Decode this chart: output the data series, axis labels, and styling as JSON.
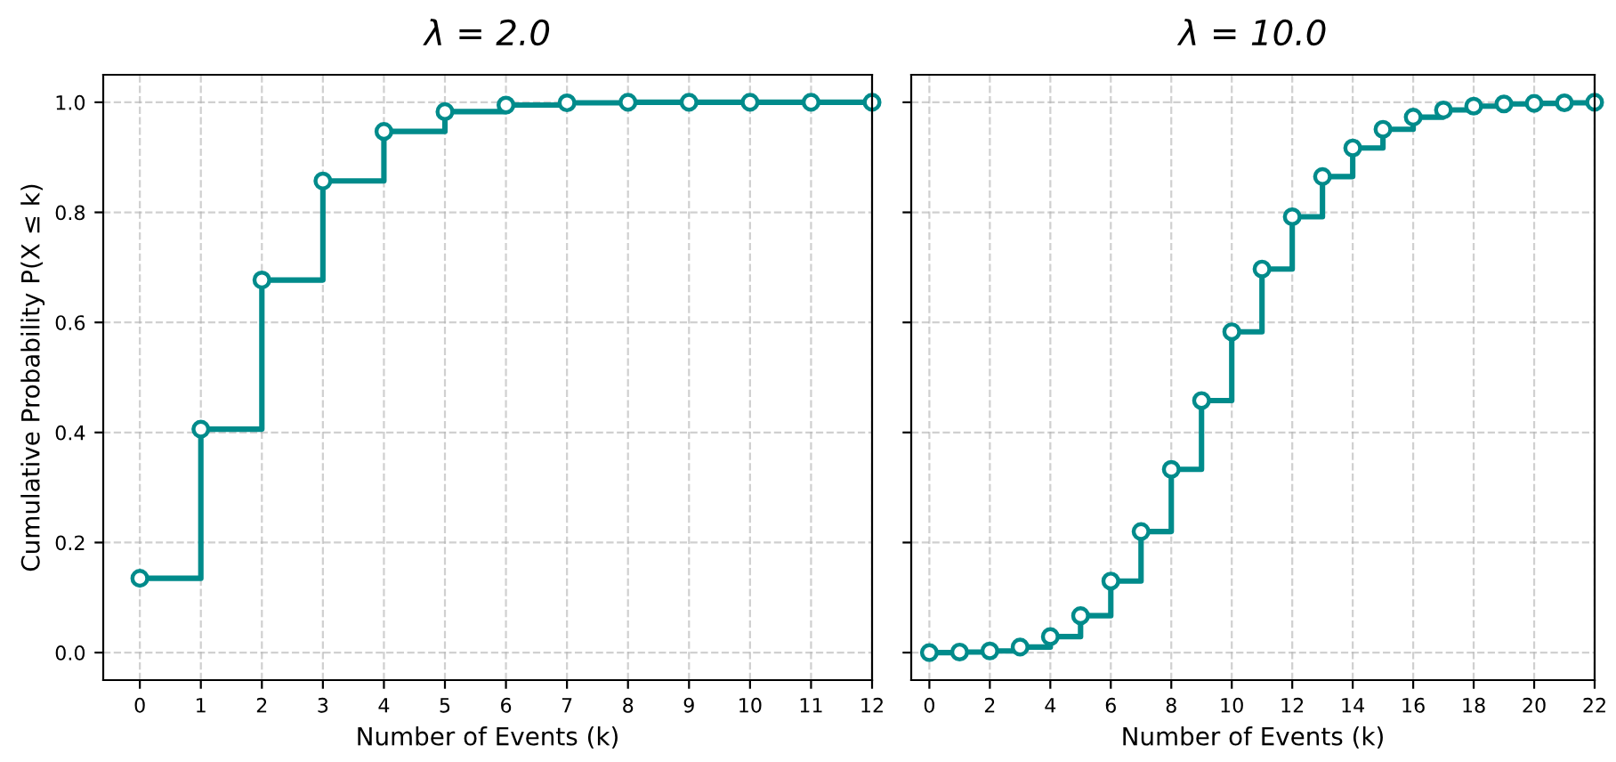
{
  "chart_data": [
    {
      "type": "step",
      "title": "λ = 2.0",
      "xlabel": "Number of Events (k)",
      "ylabel": "Cumulative Probability P(X ≤ k)",
      "x": [
        0,
        1,
        2,
        3,
        4,
        5,
        6,
        7,
        8,
        9,
        10,
        11,
        12
      ],
      "series": [
        {
          "color": "#008b8b",
          "values": [
            0.135,
            0.406,
            0.677,
            0.857,
            0.947,
            0.983,
            0.995,
            0.999,
            1.0,
            1.0,
            1.0,
            1.0,
            1.0
          ]
        }
      ],
      "xlim": [
        -0.6,
        12
      ],
      "ylim": [
        -0.05,
        1.05
      ],
      "xticks": [
        0,
        1,
        2,
        3,
        4,
        5,
        6,
        7,
        8,
        9,
        10,
        11,
        12
      ],
      "yticks": [
        {
          "value": 0,
          "label": "0.0"
        },
        0.2,
        0.4,
        0.6,
        0.8,
        {
          "value": 1,
          "label": "1.0"
        }
      ],
      "grid": true,
      "marker": "circle",
      "line_style": "solid"
    },
    {
      "type": "step",
      "title": "λ = 10.0",
      "xlabel": "Number of Events (k)",
      "x": [
        0,
        1,
        2,
        3,
        4,
        5,
        6,
        7,
        8,
        9,
        10,
        11,
        12,
        13,
        14,
        15,
        16,
        17,
        18,
        19,
        20,
        21,
        22
      ],
      "series": [
        {
          "color": "#008b8b",
          "values": [
            0.0,
            0.001,
            0.003,
            0.01,
            0.029,
            0.067,
            0.13,
            0.22,
            0.333,
            0.458,
            0.583,
            0.697,
            0.792,
            0.865,
            0.917,
            0.951,
            0.973,
            0.986,
            0.993,
            0.997,
            0.998,
            0.999,
            1.0
          ]
        }
      ],
      "xlim": [
        -0.6,
        22
      ],
      "ylim": [
        -0.05,
        1.05
      ],
      "xticks": [
        0,
        2,
        4,
        6,
        8,
        10,
        12,
        14,
        16,
        18,
        20,
        22
      ],
      "yticks": [
        0,
        0.2,
        0.4,
        0.6,
        0.8,
        1
      ],
      "tick_labels": "x",
      "grid": true,
      "marker": "circle",
      "line_style": "solid"
    }
  ]
}
